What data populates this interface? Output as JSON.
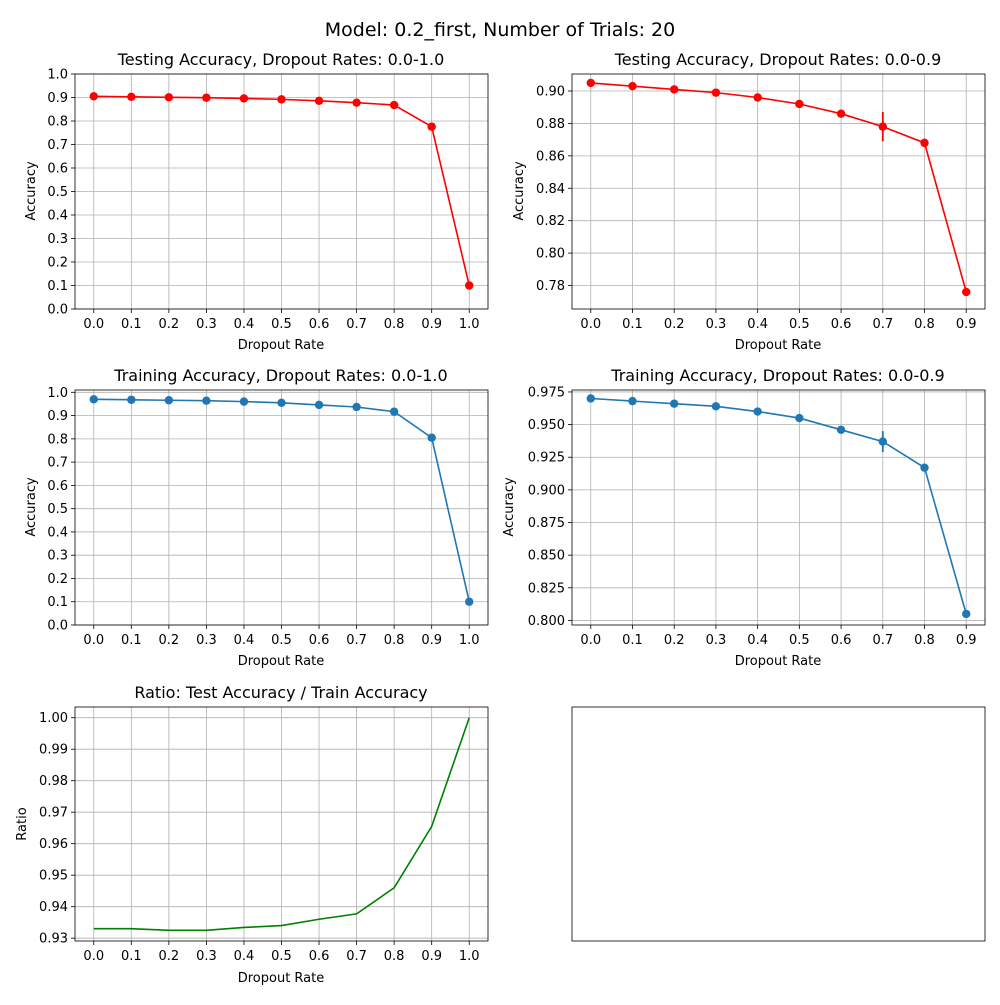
{
  "figure": {
    "title": "Model: 0.2_first, Number of Trials: 20"
  },
  "colors": {
    "testing": "#ff0000",
    "training": "#1f77b4",
    "ratio": "#008000",
    "grid": "#b0b0b0"
  },
  "chart_data": [
    {
      "type": "line",
      "title": "Testing Accuracy, Dropout Rates: 0.0-1.0",
      "xlabel": "Dropout Rate",
      "ylabel": "Accuracy",
      "x": [
        0.0,
        0.1,
        0.2,
        0.3,
        0.4,
        0.5,
        0.6,
        0.7,
        0.8,
        0.9,
        1.0
      ],
      "values": [
        0.905,
        0.903,
        0.901,
        0.899,
        0.896,
        0.892,
        0.886,
        0.878,
        0.868,
        0.776,
        0.1
      ],
      "errors": [
        0.0015,
        0.0015,
        0.0015,
        0.0015,
        0.0015,
        0.0015,
        0.0015,
        0.009,
        0.0015,
        0.0015,
        0.0
      ],
      "markers": true,
      "color": "testing",
      "xlim": [
        -0.05,
        1.05
      ],
      "ylim": [
        0.0,
        1.0
      ],
      "xticks": [
        "0.0",
        "0.1",
        "0.2",
        "0.3",
        "0.4",
        "0.5",
        "0.6",
        "0.7",
        "0.8",
        "0.9",
        "1.0"
      ],
      "yticks": [
        "0.0",
        "0.1",
        "0.2",
        "0.3",
        "0.4",
        "0.5",
        "0.6",
        "0.7",
        "0.8",
        "0.9",
        "1.0"
      ],
      "grid": true
    },
    {
      "type": "line",
      "title": "Testing Accuracy, Dropout Rates: 0.0-0.9",
      "xlabel": "Dropout Rate",
      "ylabel": "Accuracy",
      "x": [
        0.0,
        0.1,
        0.2,
        0.3,
        0.4,
        0.5,
        0.6,
        0.7,
        0.8,
        0.9
      ],
      "values": [
        0.905,
        0.903,
        0.901,
        0.899,
        0.896,
        0.892,
        0.886,
        0.878,
        0.868,
        0.776
      ],
      "errors": [
        0.0006,
        0.0006,
        0.0006,
        0.0006,
        0.0006,
        0.0006,
        0.0006,
        0.009,
        0.0006,
        0.0006
      ],
      "markers": true,
      "color": "testing",
      "xlim": [
        -0.045,
        0.945
      ],
      "ylim": [
        0.7655,
        0.9105
      ],
      "xticks": [
        "0.0",
        "0.1",
        "0.2",
        "0.3",
        "0.4",
        "0.5",
        "0.6",
        "0.7",
        "0.8",
        "0.9"
      ],
      "yticks": [
        "0.78",
        "0.80",
        "0.82",
        "0.84",
        "0.86",
        "0.88",
        "0.90"
      ],
      "grid": true
    },
    {
      "type": "line",
      "title": "Training Accuracy, Dropout Rates: 0.0-1.0",
      "xlabel": "Dropout Rate",
      "ylabel": "Accuracy",
      "x": [
        0.0,
        0.1,
        0.2,
        0.3,
        0.4,
        0.5,
        0.6,
        0.7,
        0.8,
        0.9,
        1.0
      ],
      "values": [
        0.97,
        0.968,
        0.966,
        0.964,
        0.96,
        0.955,
        0.946,
        0.937,
        0.917,
        0.805,
        0.1
      ],
      "errors": [
        0.0015,
        0.0015,
        0.0015,
        0.0015,
        0.0015,
        0.0015,
        0.0015,
        0.008,
        0.0015,
        0.0015,
        0.0
      ],
      "markers": true,
      "color": "training",
      "xlim": [
        -0.05,
        1.05
      ],
      "ylim": [
        0.0,
        1.01
      ],
      "xticks": [
        "0.0",
        "0.1",
        "0.2",
        "0.3",
        "0.4",
        "0.5",
        "0.6",
        "0.7",
        "0.8",
        "0.9",
        "1.0"
      ],
      "yticks": [
        "0.0",
        "0.1",
        "0.2",
        "0.3",
        "0.4",
        "0.5",
        "0.6",
        "0.7",
        "0.8",
        "0.9",
        "1.0"
      ],
      "grid": true
    },
    {
      "type": "line",
      "title": "Training Accuracy, Dropout Rates: 0.0-0.9",
      "xlabel": "Dropout Rate",
      "ylabel": "Accuracy",
      "x": [
        0.0,
        0.1,
        0.2,
        0.3,
        0.4,
        0.5,
        0.6,
        0.7,
        0.8,
        0.9
      ],
      "values": [
        0.97,
        0.968,
        0.966,
        0.964,
        0.96,
        0.955,
        0.946,
        0.937,
        0.917,
        0.805
      ],
      "errors": [
        0.0006,
        0.0006,
        0.0006,
        0.0006,
        0.0006,
        0.0006,
        0.0006,
        0.008,
        0.0006,
        0.0006
      ],
      "markers": true,
      "color": "training",
      "xlim": [
        -0.045,
        0.945
      ],
      "ylim": [
        0.7965,
        0.9765
      ],
      "xticks": [
        "0.0",
        "0.1",
        "0.2",
        "0.3",
        "0.4",
        "0.5",
        "0.6",
        "0.7",
        "0.8",
        "0.9"
      ],
      "yticks": [
        "0.800",
        "0.825",
        "0.850",
        "0.875",
        "0.900",
        "0.925",
        "0.950",
        "0.975"
      ],
      "grid": true
    },
    {
      "type": "line",
      "title": "Ratio: Test Accuracy / Train Accuracy",
      "xlabel": "Dropout Rate",
      "ylabel": "Ratio",
      "x": [
        0.0,
        0.1,
        0.2,
        0.3,
        0.4,
        0.5,
        0.6,
        0.7,
        0.8,
        0.9,
        1.0
      ],
      "values": [
        0.933,
        0.933,
        0.9325,
        0.9325,
        0.9334,
        0.934,
        0.936,
        0.9377,
        0.946,
        0.9655,
        1.0
      ],
      "markers": false,
      "color": "ratio",
      "xlim": [
        -0.05,
        1.05
      ],
      "ylim": [
        0.9291,
        1.0034
      ],
      "xticks": [
        "0.0",
        "0.1",
        "0.2",
        "0.3",
        "0.4",
        "0.5",
        "0.6",
        "0.7",
        "0.8",
        "0.9",
        "1.0"
      ],
      "yticks": [
        "0.93",
        "0.94",
        "0.95",
        "0.96",
        "0.97",
        "0.98",
        "0.99",
        "1.00"
      ],
      "grid": true
    }
  ]
}
